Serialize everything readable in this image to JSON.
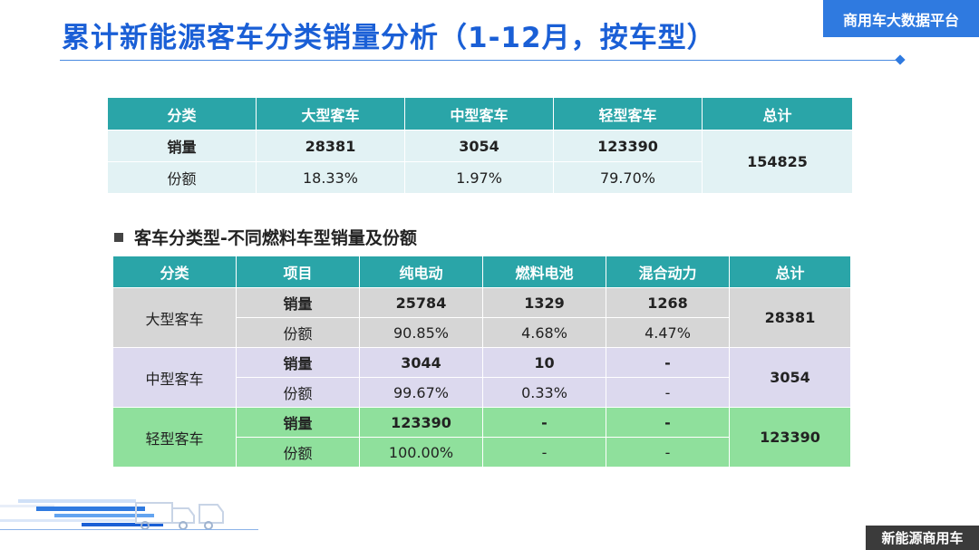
{
  "title": "累计新能源客车分类销量分析（1-12月，按车型）",
  "brand_top": "商用车大数据平台",
  "brand_bottom": "新能源商用车",
  "table1": {
    "headers": [
      "分类",
      "大型客车",
      "中型客车",
      "轻型客车",
      "总计"
    ],
    "rows": [
      {
        "label": "销量",
        "large": "28381",
        "mid": "3054",
        "light": "123390"
      },
      {
        "label": "份额",
        "large": "18.33%",
        "mid": "1.97%",
        "light": "79.70%"
      }
    ],
    "total": "154825"
  },
  "section_heading": "客车分类型-不同燃料车型销量及份额",
  "table2": {
    "headers": [
      "分类",
      "项目",
      "纯电动",
      "燃料电池",
      "混合动力",
      "总计"
    ],
    "groups": [
      {
        "category": "大型客车",
        "sales": {
          "label": "销量",
          "bev": "25784",
          "fcev": "1329",
          "hev": "1268"
        },
        "share": {
          "label": "份额",
          "bev": "90.85%",
          "fcev": "4.68%",
          "hev": "4.47%"
        },
        "total": "28381"
      },
      {
        "category": "中型客车",
        "sales": {
          "label": "销量",
          "bev": "3044",
          "fcev": "10",
          "hev": "-"
        },
        "share": {
          "label": "份额",
          "bev": "99.67%",
          "fcev": "0.33%",
          "hev": "-"
        },
        "total": "3054"
      },
      {
        "category": "轻型客车",
        "sales": {
          "label": "销量",
          "bev": "123390",
          "fcev": "-",
          "hev": "-"
        },
        "share": {
          "label": "份额",
          "bev": "100.00%",
          "fcev": "-",
          "hev": "-"
        },
        "total": "123390"
      }
    ]
  },
  "colors": {
    "title": "#1a5fd6",
    "header": "#2aa5a8",
    "large_bg": "#d6d6d6",
    "mid_bg": "#dcd9ee",
    "light_bg": "#8fe09c"
  }
}
